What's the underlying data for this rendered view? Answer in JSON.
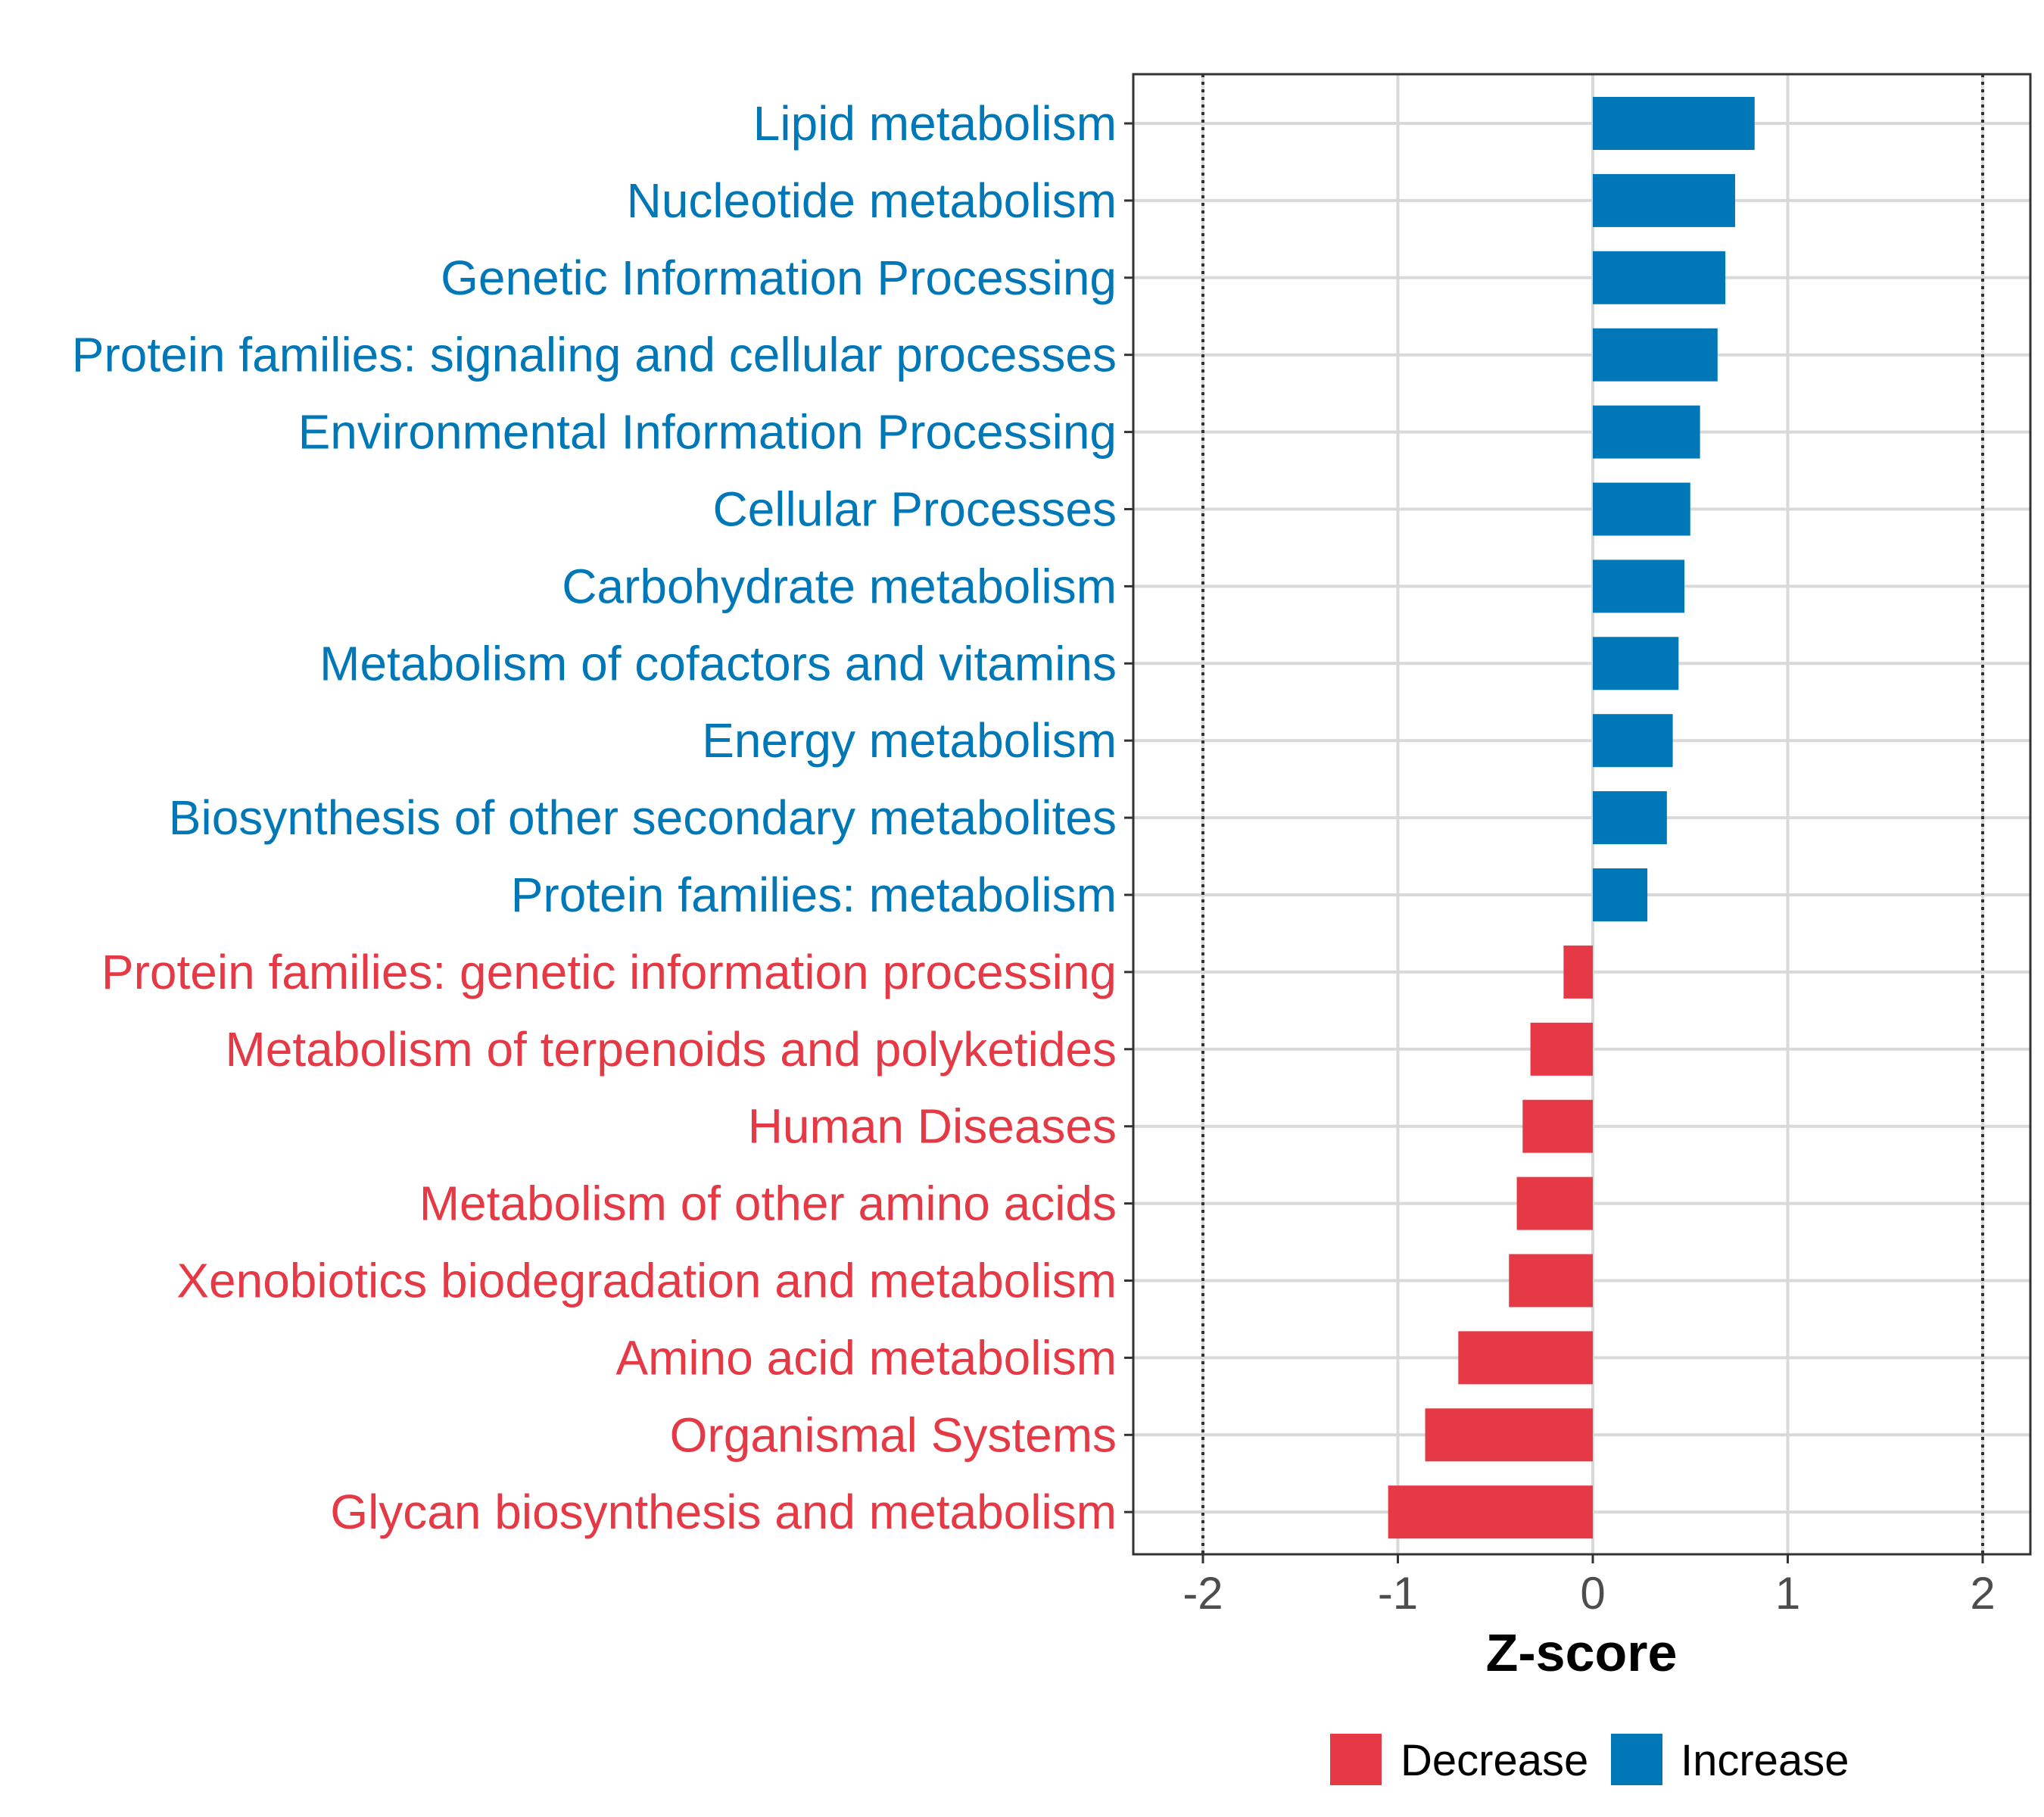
{
  "chart_data": {
    "type": "bar",
    "orientation": "horizontal",
    "xlabel": "Z-score",
    "ylabel": "",
    "xlim": [
      -2.2,
      2.25
    ],
    "x_ticks": [
      -2,
      -1,
      0,
      1,
      2
    ],
    "x_tick_labels": [
      "-2",
      "-1",
      "0",
      "1",
      "2"
    ],
    "reference_lines": [
      -2,
      2
    ],
    "grid": true,
    "legend_position": "bottom",
    "colors": {
      "Decrease": "#e63946",
      "Increase": "#0077b6"
    },
    "categories": [
      "Lipid metabolism",
      "Nucleotide metabolism",
      "Genetic Information Processing",
      "Protein families: signaling and cellular processes",
      "Environmental Information Processing",
      "Cellular Processes",
      "Carbohydrate metabolism",
      "Metabolism of cofactors and vitamins",
      "Energy metabolism",
      "Biosynthesis of other secondary metabolites",
      "Protein families: metabolism",
      "Protein families: genetic information processing",
      "Metabolism of terpenoids and polyketides",
      "Human Diseases",
      "Metabolism of other amino acids",
      "Xenobiotics biodegradation and metabolism",
      "Amino acid metabolism",
      "Organismal Systems",
      "Glycan biosynthesis and metabolism"
    ],
    "values": [
      0.83,
      0.73,
      0.68,
      0.64,
      0.55,
      0.5,
      0.47,
      0.44,
      0.41,
      0.38,
      0.28,
      -0.15,
      -0.32,
      -0.36,
      -0.39,
      -0.43,
      -0.69,
      -0.86,
      -1.05
    ],
    "groups": [
      "Increase",
      "Increase",
      "Increase",
      "Increase",
      "Increase",
      "Increase",
      "Increase",
      "Increase",
      "Increase",
      "Increase",
      "Increase",
      "Decrease",
      "Decrease",
      "Decrease",
      "Decrease",
      "Decrease",
      "Decrease",
      "Decrease",
      "Decrease"
    ],
    "legend": [
      "Decrease",
      "Increase"
    ]
  }
}
